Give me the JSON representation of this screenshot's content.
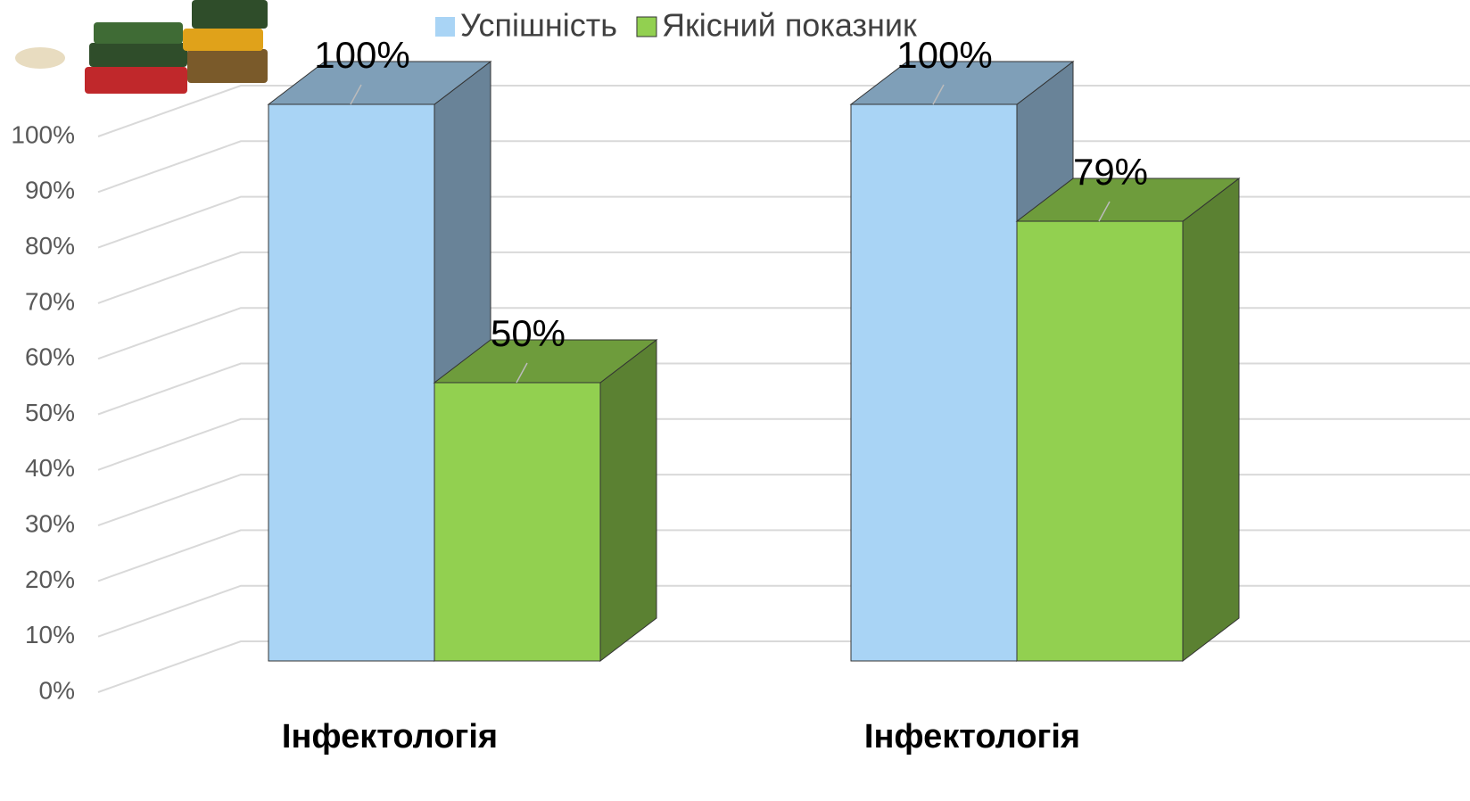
{
  "chart_data": {
    "type": "bar3d",
    "categories": [
      "Інфектологія",
      "Інфектологія"
    ],
    "series": [
      {
        "name": "Успішність",
        "color": "#a9d4f5",
        "values": [
          100,
          100
        ],
        "value_labels": [
          "100%",
          "100%"
        ]
      },
      {
        "name": "Якісний показник",
        "color": "#92d050",
        "values": [
          50,
          79
        ],
        "value_labels": [
          "50%",
          "79%"
        ]
      }
    ],
    "ylim": [
      0,
      100
    ],
    "yticks": [
      {
        "value": 0,
        "label": "0%"
      },
      {
        "value": 10,
        "label": "10%"
      },
      {
        "value": 20,
        "label": "20%"
      },
      {
        "value": 30,
        "label": "30%"
      },
      {
        "value": 40,
        "label": "40%"
      },
      {
        "value": 50,
        "label": "50%"
      },
      {
        "value": 60,
        "label": "60%"
      },
      {
        "value": 70,
        "label": "70%"
      },
      {
        "value": 80,
        "label": "80%"
      },
      {
        "value": 90,
        "label": "90%"
      },
      {
        "value": 100,
        "label": "100%"
      }
    ],
    "grid": true,
    "legend": "top"
  }
}
